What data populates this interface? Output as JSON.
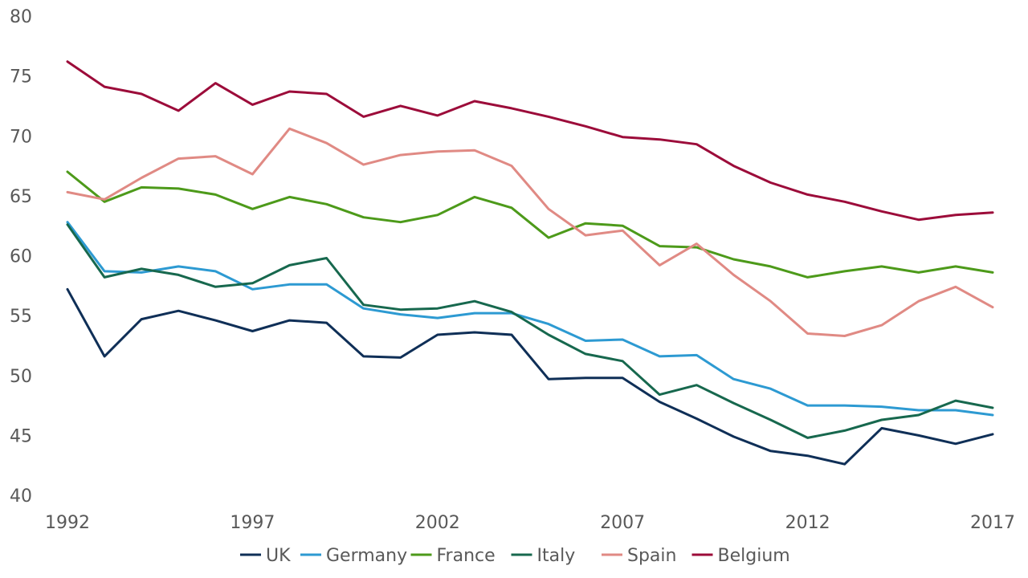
{
  "chart_data": {
    "type": "line",
    "title": "",
    "xlabel": "",
    "ylabel": "",
    "ylim": [
      40,
      80
    ],
    "yticks": [
      40,
      45,
      50,
      55,
      60,
      65,
      70,
      75,
      80
    ],
    "xlim": [
      1992,
      2017
    ],
    "xticks": [
      1992,
      1997,
      2002,
      2007,
      2012,
      2017
    ],
    "grid": false,
    "legend_position": "bottom",
    "x": [
      1992,
      1993,
      1994,
      1995,
      1996,
      1997,
      1998,
      1999,
      2000,
      2001,
      2002,
      2003,
      2004,
      2005,
      2006,
      2007,
      2008,
      2009,
      2010,
      2011,
      2012,
      2013,
      2014,
      2015,
      2016,
      2017
    ],
    "series": [
      {
        "name": "UK",
        "color": "#0f2f57",
        "values": [
          57.2,
          51.6,
          54.7,
          55.4,
          54.6,
          53.7,
          54.6,
          54.4,
          51.6,
          51.5,
          53.4,
          53.6,
          53.4,
          49.7,
          49.8,
          49.8,
          47.8,
          46.4,
          44.9,
          43.7,
          43.3,
          42.6,
          45.6,
          45.0,
          44.3,
          45.1
        ]
      },
      {
        "name": "Germany",
        "color": "#2d9ad2",
        "values": [
          62.8,
          58.7,
          58.6,
          59.1,
          58.7,
          57.2,
          57.6,
          57.6,
          55.6,
          55.1,
          54.8,
          55.2,
          55.2,
          54.3,
          52.9,
          53.0,
          51.6,
          51.7,
          49.7,
          48.9,
          47.5,
          47.5,
          47.4,
          47.1,
          47.1,
          46.7
        ]
      },
      {
        "name": "France",
        "color": "#4d9a1a",
        "values": [
          67.0,
          64.5,
          65.7,
          65.6,
          65.1,
          63.9,
          64.9,
          64.3,
          63.2,
          62.8,
          63.4,
          64.9,
          64.0,
          61.5,
          62.7,
          62.5,
          60.8,
          60.7,
          59.7,
          59.1,
          58.2,
          58.7,
          59.1,
          58.6,
          59.1,
          58.6
        ]
      },
      {
        "name": "Italy",
        "color": "#17684e",
        "values": [
          62.6,
          58.2,
          58.9,
          58.4,
          57.4,
          57.7,
          59.2,
          59.8,
          55.9,
          55.5,
          55.6,
          56.2,
          55.3,
          53.4,
          51.8,
          51.2,
          48.4,
          49.2,
          47.7,
          46.3,
          44.8,
          45.4,
          46.3,
          46.7,
          47.9,
          47.3
        ]
      },
      {
        "name": "Spain",
        "color": "#e08a84",
        "values": [
          65.3,
          64.7,
          66.5,
          68.1,
          68.3,
          66.8,
          70.6,
          69.4,
          67.6,
          68.4,
          68.7,
          68.8,
          67.5,
          63.9,
          61.7,
          62.1,
          59.2,
          61.0,
          58.4,
          56.2,
          53.5,
          53.3,
          54.2,
          56.2,
          57.4,
          55.7
        ]
      },
      {
        "name": "Belgium",
        "color": "#9c0c3a",
        "values": [
          76.2,
          74.1,
          73.5,
          72.1,
          74.4,
          72.6,
          73.7,
          73.5,
          71.6,
          72.5,
          71.7,
          72.9,
          72.3,
          71.6,
          70.8,
          69.9,
          69.7,
          69.3,
          67.5,
          66.1,
          65.1,
          64.5,
          63.7,
          63.0,
          63.4,
          63.6
        ]
      }
    ]
  }
}
